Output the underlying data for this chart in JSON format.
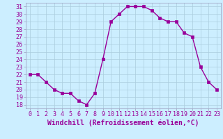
{
  "hours": [
    0,
    1,
    2,
    3,
    4,
    5,
    6,
    7,
    8,
    9,
    10,
    11,
    12,
    13,
    14,
    15,
    16,
    17,
    18,
    19,
    20,
    21,
    22,
    23
  ],
  "values": [
    22,
    22,
    21,
    20,
    19.5,
    19.5,
    18.5,
    18,
    19.5,
    24,
    29,
    30,
    31,
    31,
    31,
    30.5,
    29.5,
    29,
    29,
    27.5,
    27,
    23,
    21,
    20
  ],
  "line_color": "#990099",
  "marker": "s",
  "marker_size": 2.5,
  "bg_color": "#cceeff",
  "grid_color": "#aaccdd",
  "xlabel": "Windchill (Refroidissement éolien,°C)",
  "xlabel_color": "#990099",
  "tick_color": "#990099",
  "border_color": "#9999bb",
  "ylim": [
    17.5,
    31.5
  ],
  "yticks": [
    18,
    19,
    20,
    21,
    22,
    23,
    24,
    25,
    26,
    27,
    28,
    29,
    30,
    31
  ],
  "xticks": [
    0,
    1,
    2,
    3,
    4,
    5,
    6,
    7,
    8,
    9,
    10,
    11,
    12,
    13,
    14,
    15,
    16,
    17,
    18,
    19,
    20,
    21,
    22,
    23
  ],
  "tick_fontsize": 6,
  "xlabel_fontsize": 7,
  "line_width": 1.0
}
